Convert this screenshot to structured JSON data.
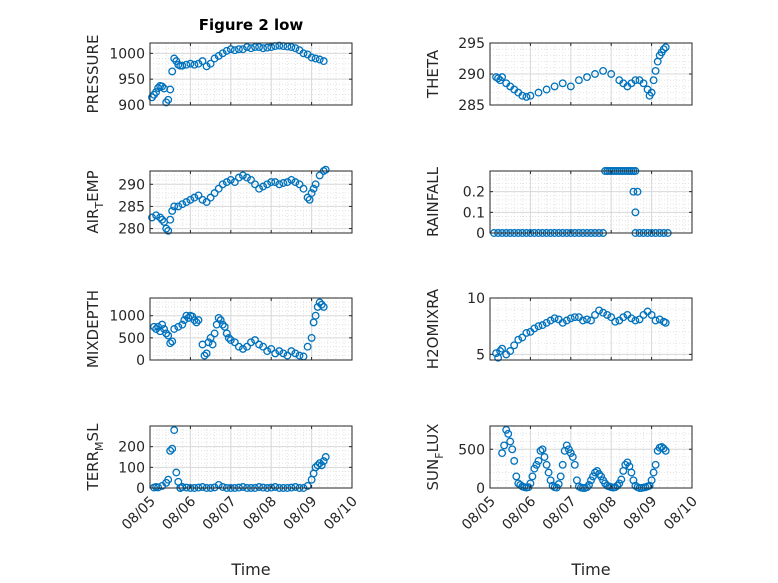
{
  "figure": {
    "title": "Figure 2 low"
  },
  "colors": {
    "marker": "#0072BD",
    "axis": "#262626",
    "grid": "#d9d9d9"
  },
  "chart_data": [
    {
      "type": "scatter",
      "ylabel": "PRESSURE",
      "ylim": [
        900,
        1020
      ],
      "yticks": [
        900,
        950,
        1000
      ],
      "ytick_labels": [
        "900",
        "950",
        "1000"
      ],
      "xlim": [
        0,
        5
      ],
      "xticks": [
        0,
        1,
        2,
        3,
        4,
        5
      ],
      "xtick_labels": [],
      "xlabel": "",
      "grid": true,
      "x": [
        0.05,
        0.1,
        0.15,
        0.2,
        0.25,
        0.3,
        0.35,
        0.4,
        0.45,
        0.5,
        0.55,
        0.6,
        0.65,
        0.7,
        0.75,
        0.8,
        0.9,
        1.0,
        1.1,
        1.2,
        1.3,
        1.4,
        1.5,
        1.6,
        1.7,
        1.8,
        1.9,
        2.0,
        2.1,
        2.2,
        2.3,
        2.4,
        2.5,
        2.6,
        2.7,
        2.8,
        2.9,
        3.0,
        3.1,
        3.2,
        3.3,
        3.4,
        3.5,
        3.6,
        3.7,
        3.8,
        3.9,
        4.0,
        4.1,
        4.2,
        4.3
      ],
      "y": [
        915,
        920,
        925,
        933,
        937,
        936,
        932,
        905,
        910,
        930,
        965,
        990,
        985,
        978,
        976,
        976,
        978,
        980,
        978,
        980,
        985,
        975,
        980,
        990,
        995,
        1000,
        1005,
        1008,
        1006,
        1008,
        1008,
        1012,
        1010,
        1012,
        1012,
        1010,
        1011,
        1012,
        1014,
        1015,
        1014,
        1013,
        1012,
        1010,
        1006,
        1000,
        998,
        992,
        990,
        988,
        985
      ]
    },
    {
      "type": "scatter",
      "ylabel": "THETA",
      "ylim": [
        285,
        295
      ],
      "yticks": [
        285,
        290,
        295
      ],
      "ytick_labels": [
        "285",
        "290",
        "295"
      ],
      "xlim": [
        0,
        5
      ],
      "xticks": [
        0,
        1,
        2,
        3,
        4,
        5
      ],
      "xtick_labels": [],
      "xlabel": "",
      "grid": true,
      "x": [
        0.15,
        0.2,
        0.25,
        0.3,
        0.4,
        0.5,
        0.6,
        0.7,
        0.8,
        0.9,
        1.0,
        1.2,
        1.4,
        1.6,
        1.8,
        2.0,
        2.2,
        2.4,
        2.6,
        2.8,
        3.0,
        3.2,
        3.3,
        3.4,
        3.5,
        3.6,
        3.7,
        3.8,
        3.9,
        3.95,
        4.0,
        4.05,
        4.1,
        4.15,
        4.2,
        4.25,
        4.3,
        4.35
      ],
      "y": [
        289.5,
        289.3,
        289,
        289.5,
        288.5,
        288,
        287.5,
        287,
        286.5,
        286.3,
        286.5,
        287,
        287.5,
        288,
        288.5,
        288,
        289,
        289.5,
        290,
        290.5,
        290,
        289,
        288.5,
        288,
        288.5,
        289,
        289,
        288.5,
        287.5,
        286.5,
        287,
        289,
        290.5,
        292,
        293,
        293.5,
        294,
        294.3
      ]
    },
    {
      "type": "scatter",
      "ylabel": "AIR_TEMP",
      "ylim": [
        279,
        293
      ],
      "yticks": [
        280,
        285,
        290
      ],
      "ytick_labels": [
        "280",
        "285",
        "290"
      ],
      "xlim": [
        0,
        5
      ],
      "xticks": [
        0,
        1,
        2,
        3,
        4,
        5
      ],
      "xtick_labels": [],
      "xlabel": "",
      "grid": true,
      "x": [
        0.05,
        0.15,
        0.25,
        0.3,
        0.35,
        0.4,
        0.45,
        0.5,
        0.55,
        0.6,
        0.7,
        0.8,
        0.9,
        1.0,
        1.1,
        1.2,
        1.3,
        1.4,
        1.5,
        1.6,
        1.7,
        1.8,
        1.9,
        2.0,
        2.1,
        2.2,
        2.3,
        2.4,
        2.5,
        2.6,
        2.7,
        2.8,
        2.9,
        3.0,
        3.1,
        3.2,
        3.3,
        3.4,
        3.5,
        3.6,
        3.7,
        3.8,
        3.9,
        3.95,
        4.0,
        4.05,
        4.1,
        4.2,
        4.3,
        4.35
      ],
      "y": [
        282.5,
        283,
        282.5,
        282,
        281.5,
        280,
        279.5,
        282,
        284,
        285,
        285,
        285.5,
        286,
        286.5,
        287,
        287.5,
        286.5,
        286,
        287,
        288,
        289,
        290,
        290.5,
        291,
        290.5,
        291.5,
        292,
        291.5,
        291,
        290,
        289,
        289.5,
        290,
        290.5,
        290.5,
        290,
        290.3,
        290.5,
        291,
        290.5,
        290,
        289,
        287,
        286.5,
        288,
        289,
        290,
        292,
        293,
        293.3
      ]
    },
    {
      "type": "scatter",
      "ylabel": "RAINFALL",
      "ylim": [
        0,
        0.3
      ],
      "yticks": [
        0,
        0.1,
        0.2
      ],
      "ytick_labels": [
        "0",
        "0.1",
        "0.2"
      ],
      "xlim": [
        0,
        5
      ],
      "xticks": [
        0,
        1,
        2,
        3,
        4,
        5
      ],
      "xtick_labels": [],
      "xlabel": "",
      "grid": true,
      "x": [
        0.1,
        0.2,
        0.3,
        0.4,
        0.5,
        0.6,
        0.7,
        0.8,
        0.9,
        1.0,
        1.1,
        1.2,
        1.3,
        1.4,
        1.5,
        1.6,
        1.7,
        1.8,
        1.9,
        2.0,
        2.1,
        2.2,
        2.3,
        2.4,
        2.5,
        2.6,
        2.7,
        2.8,
        2.85,
        2.9,
        2.95,
        3.0,
        3.05,
        3.1,
        3.15,
        3.2,
        3.25,
        3.3,
        3.35,
        3.4,
        3.45,
        3.5,
        3.55,
        3.6,
        3.7,
        3.8,
        3.9,
        4.0,
        4.1,
        4.2,
        4.3,
        4.4,
        3.55,
        3.6,
        3.6,
        3.65
      ],
      "y": [
        0,
        0,
        0,
        0,
        0,
        0,
        0,
        0,
        0,
        0,
        0,
        0,
        0,
        0,
        0,
        0,
        0,
        0,
        0,
        0,
        0,
        0,
        0,
        0,
        0,
        0,
        0,
        0,
        0.3,
        0.3,
        0.3,
        0.3,
        0.3,
        0.3,
        0.3,
        0.3,
        0.3,
        0.3,
        0.3,
        0.3,
        0.3,
        0.3,
        0.3,
        0.3,
        0,
        0,
        0,
        0,
        0,
        0,
        0,
        0,
        0.2,
        0.1,
        0,
        0.2
      ]
    },
    {
      "type": "scatter",
      "ylabel": "MIXDEPTH",
      "ylim": [
        0,
        1400
      ],
      "yticks": [
        0,
        500,
        1000
      ],
      "ytick_labels": [
        "0",
        "500",
        "1000"
      ],
      "xlim": [
        0,
        5
      ],
      "xticks": [
        0,
        1,
        2,
        3,
        4,
        5
      ],
      "xtick_labels": [],
      "xlabel": "",
      "grid": true,
      "x": [
        0.1,
        0.15,
        0.2,
        0.25,
        0.3,
        0.35,
        0.4,
        0.45,
        0.5,
        0.55,
        0.6,
        0.7,
        0.8,
        0.85,
        0.9,
        0.95,
        1.0,
        1.05,
        1.1,
        1.15,
        1.2,
        1.3,
        1.35,
        1.4,
        1.45,
        1.5,
        1.55,
        1.6,
        1.65,
        1.7,
        1.75,
        1.8,
        1.85,
        1.9,
        1.95,
        2.0,
        2.1,
        2.2,
        2.3,
        2.4,
        2.5,
        2.6,
        2.7,
        2.8,
        2.9,
        3.0,
        3.1,
        3.2,
        3.3,
        3.4,
        3.5,
        3.6,
        3.7,
        3.8,
        3.9,
        4.0,
        4.05,
        4.1,
        4.15,
        4.2,
        4.25,
        4.3
      ],
      "y": [
        750,
        700,
        750,
        650,
        800,
        700,
        600,
        550,
        380,
        420,
        700,
        750,
        800,
        900,
        1000,
        950,
        1000,
        980,
        900,
        850,
        900,
        350,
        100,
        150,
        400,
        500,
        350,
        600,
        800,
        950,
        900,
        800,
        750,
        600,
        500,
        450,
        400,
        300,
        250,
        300,
        400,
        450,
        350,
        300,
        200,
        250,
        150,
        200,
        150,
        100,
        200,
        150,
        100,
        80,
        300,
        500,
        850,
        1000,
        1200,
        1300,
        1250,
        1200
      ]
    },
    {
      "type": "scatter",
      "ylabel": "H2OMIXRA",
      "ylim": [
        4.5,
        10
      ],
      "yticks": [
        5,
        10
      ],
      "ytick_labels": [
        "5",
        "10"
      ],
      "xlim": [
        0,
        5
      ],
      "xticks": [
        0,
        1,
        2,
        3,
        4,
        5
      ],
      "xtick_labels": [],
      "xlabel": "",
      "grid": true,
      "x": [
        0.15,
        0.2,
        0.25,
        0.3,
        0.4,
        0.5,
        0.6,
        0.7,
        0.8,
        0.9,
        1.0,
        1.1,
        1.2,
        1.3,
        1.4,
        1.5,
        1.6,
        1.7,
        1.8,
        1.9,
        2.0,
        2.1,
        2.2,
        2.3,
        2.4,
        2.5,
        2.6,
        2.7,
        2.8,
        2.9,
        3.0,
        3.1,
        3.2,
        3.3,
        3.4,
        3.5,
        3.6,
        3.7,
        3.8,
        3.9,
        4.0,
        4.1,
        4.2,
        4.3,
        4.35
      ],
      "y": [
        5.1,
        4.7,
        5.3,
        5.5,
        5.0,
        5.3,
        5.8,
        6.3,
        6.5,
        6.9,
        7.0,
        7.3,
        7.5,
        7.6,
        7.8,
        8.0,
        8.2,
        8.1,
        7.8,
        8.0,
        8.2,
        8.3,
        8.3,
        8.0,
        8.1,
        8.0,
        8.5,
        8.9,
        8.7,
        8.5,
        8.3,
        7.9,
        8.0,
        8.3,
        8.5,
        8.2,
        8.0,
        8.1,
        8.5,
        8.8,
        8.5,
        8.0,
        8.1,
        7.9,
        7.8
      ]
    },
    {
      "type": "scatter",
      "ylabel": "TERR_MSL",
      "ylim": [
        0,
        300
      ],
      "yticks": [
        0,
        100,
        200
      ],
      "ytick_labels": [
        "0",
        "100",
        "200"
      ],
      "xlim": [
        0,
        5
      ],
      "xticks": [
        0,
        1,
        2,
        3,
        4,
        5
      ],
      "xtick_labels": [
        "08/05",
        "08/06",
        "08/07",
        "08/08",
        "08/09",
        "08/10"
      ],
      "xlabel": "Time",
      "grid": true,
      "x": [
        0.1,
        0.15,
        0.2,
        0.3,
        0.4,
        0.45,
        0.5,
        0.55,
        0.6,
        0.65,
        0.7,
        0.8,
        0.9,
        1.0,
        1.1,
        1.2,
        1.3,
        1.4,
        1.5,
        1.6,
        1.7,
        1.8,
        1.9,
        2.0,
        2.1,
        2.2,
        2.3,
        2.4,
        2.5,
        2.6,
        2.7,
        2.8,
        2.9,
        3.0,
        3.1,
        3.2,
        3.3,
        3.4,
        3.5,
        3.6,
        3.7,
        3.8,
        3.9,
        4.0,
        4.05,
        4.1,
        4.15,
        4.2,
        4.25,
        4.3,
        4.35,
        0.75,
        0.75,
        0.8
      ],
      "y": [
        2,
        5,
        3,
        10,
        25,
        40,
        180,
        190,
        280,
        75,
        30,
        5,
        2,
        0,
        0,
        2,
        5,
        0,
        0,
        3,
        15,
        5,
        0,
        0,
        0,
        2,
        5,
        0,
        0,
        0,
        5,
        2,
        0,
        2,
        5,
        0,
        0,
        0,
        2,
        5,
        0,
        0,
        10,
        40,
        70,
        100,
        110,
        120,
        110,
        130,
        150,
        0,
        0,
        5
      ]
    },
    {
      "type": "scatter",
      "ylabel": "SUN_FLUX",
      "ylim": [
        0,
        800
      ],
      "yticks": [
        0,
        500
      ],
      "ytick_labels": [
        "0",
        "500"
      ],
      "xlim": [
        0,
        5
      ],
      "xticks": [
        0,
        1,
        2,
        3,
        4,
        5
      ],
      "xtick_labels": [
        "08/05",
        "08/06",
        "08/07",
        "08/08",
        "08/09",
        "08/10"
      ],
      "xlabel": "Time",
      "grid": true,
      "x": [
        0.3,
        0.35,
        0.4,
        0.45,
        0.5,
        0.55,
        0.6,
        0.65,
        0.7,
        0.75,
        0.8,
        0.85,
        0.9,
        0.95,
        1.0,
        1.05,
        1.1,
        1.15,
        1.2,
        1.25,
        1.3,
        1.35,
        1.4,
        1.45,
        1.5,
        1.55,
        1.6,
        1.65,
        1.7,
        1.75,
        1.8,
        1.85,
        1.9,
        1.95,
        2.0,
        2.05,
        2.1,
        2.15,
        2.2,
        2.25,
        2.3,
        2.35,
        2.4,
        2.45,
        2.5,
        2.55,
        2.6,
        2.65,
        2.7,
        2.75,
        2.8,
        2.85,
        2.9,
        2.95,
        3.0,
        3.05,
        3.1,
        3.15,
        3.2,
        3.25,
        3.3,
        3.35,
        3.4,
        3.45,
        3.5,
        3.55,
        3.6,
        3.65,
        3.7,
        3.75,
        3.8,
        3.85,
        3.9,
        3.95,
        4.0,
        4.05,
        4.1,
        4.15,
        4.2,
        4.25,
        4.3,
        4.35
      ],
      "y": [
        450,
        550,
        750,
        700,
        600,
        500,
        350,
        150,
        60,
        40,
        20,
        10,
        5,
        10,
        60,
        150,
        250,
        300,
        350,
        480,
        500,
        400,
        300,
        200,
        100,
        30,
        10,
        5,
        50,
        150,
        300,
        480,
        550,
        500,
        450,
        400,
        300,
        100,
        20,
        5,
        0,
        0,
        10,
        40,
        100,
        150,
        200,
        220,
        180,
        150,
        100,
        60,
        30,
        20,
        10,
        5,
        10,
        30,
        60,
        110,
        220,
        300,
        330,
        280,
        200,
        100,
        30,
        10,
        0,
        0,
        5,
        10,
        20,
        30,
        100,
        200,
        300,
        480,
        520,
        530,
        510,
        480
      ]
    }
  ]
}
